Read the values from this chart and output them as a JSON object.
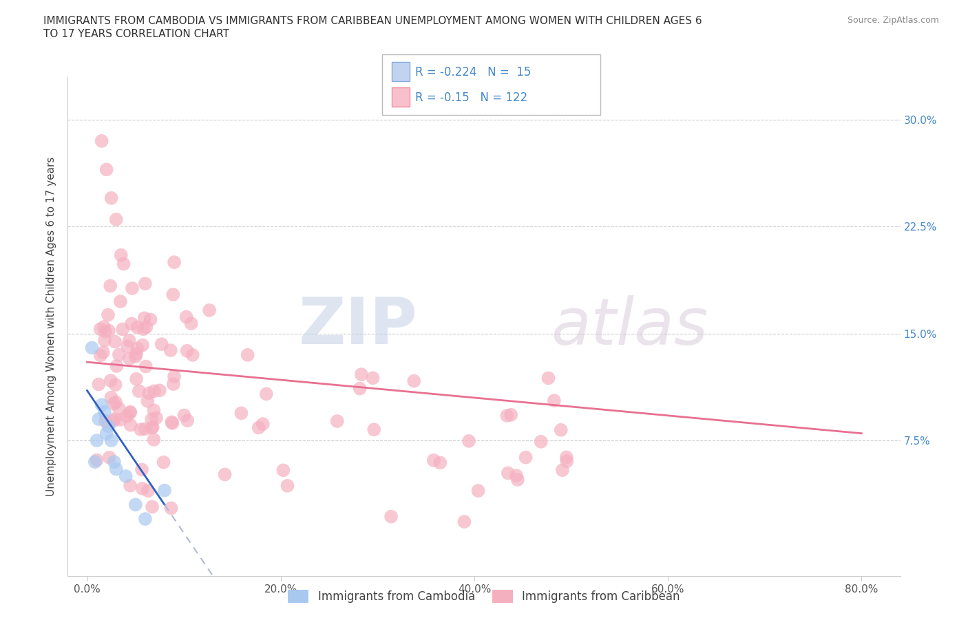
{
  "title_line1": "IMMIGRANTS FROM CAMBODIA VS IMMIGRANTS FROM CARIBBEAN UNEMPLOYMENT AMONG WOMEN WITH CHILDREN AGES 6",
  "title_line2": "TO 17 YEARS CORRELATION CHART",
  "source": "Source: ZipAtlas.com",
  "ylabel": "Unemployment Among Women with Children Ages 6 to 17 years",
  "xlabel_ticks": [
    "0.0%",
    "20.0%",
    "40.0%",
    "60.0%",
    "80.0%"
  ],
  "xlabel_vals": [
    0.0,
    0.2,
    0.4,
    0.6,
    0.8
  ],
  "ylabel_ticks": [
    "7.5%",
    "15.0%",
    "22.5%",
    "30.0%"
  ],
  "ylabel_vals": [
    0.075,
    0.15,
    0.225,
    0.3
  ],
  "xlim": [
    -0.02,
    0.84
  ],
  "ylim": [
    -0.02,
    0.33
  ],
  "R_cambodia": -0.224,
  "N_cambodia": 15,
  "R_caribbean": -0.15,
  "N_caribbean": 122,
  "color_cambodia": "#a8c8f0",
  "color_caribbean": "#f5b0c0",
  "trendline_cambodia_color": "#3060c0",
  "trendline_caribbean_color": "#e87090",
  "trendline_dashed_color": "#b0b8d8",
  "legend_label_cambodia": "Immigrants from Cambodia",
  "legend_label_caribbean": "Immigrants from Caribbean",
  "watermark_zip": "ZIP",
  "watermark_atlas": "atlas",
  "title_fontsize": 11,
  "source_fontsize": 9,
  "tick_fontsize": 11
}
